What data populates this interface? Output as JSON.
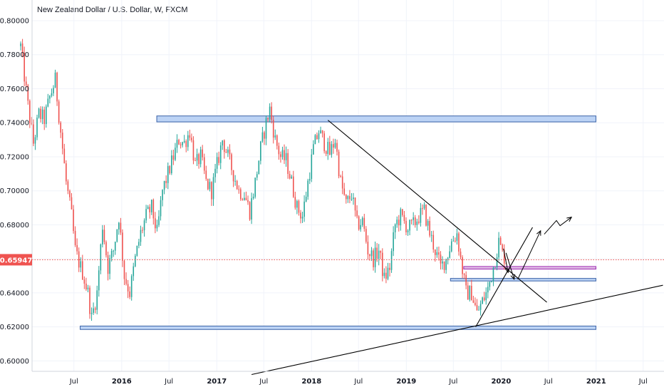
{
  "colors": {
    "up": "#26a69a",
    "down": "#ef5350",
    "grid": "#f0f3fa",
    "axis": "#d1d4dc",
    "zone_fill": "#bcd3f5",
    "zone_stroke": "#3a63a8",
    "purple": "#9c27b0",
    "price_line": "#ef5350",
    "drawing": "#000000"
  },
  "chart_data": {
    "type": "candlestick",
    "title": "New Zealand Dollar / U.S. Dollar, W, FXCM",
    "ylim": [
      0.595,
      0.808
    ],
    "y_ticks": [
      "0.80000",
      "0.78000",
      "0.76000",
      "0.74000",
      "0.72000",
      "0.70000",
      "0.68000",
      "0.66000",
      "0.64000",
      "0.62000",
      "0.60000"
    ],
    "x_ticks": [
      {
        "label": "Jul",
        "date": "2015-07-01",
        "bold": false
      },
      {
        "label": "2016",
        "date": "2016-01-01",
        "bold": true
      },
      {
        "label": "Jul",
        "date": "2016-07-01",
        "bold": false
      },
      {
        "label": "2017",
        "date": "2017-01-01",
        "bold": true
      },
      {
        "label": "Jul",
        "date": "2017-07-01",
        "bold": false
      },
      {
        "label": "2018",
        "date": "2018-01-01",
        "bold": true
      },
      {
        "label": "Jul",
        "date": "2018-07-01",
        "bold": false
      },
      {
        "label": "2019",
        "date": "2019-01-01",
        "bold": true
      },
      {
        "label": "Jul",
        "date": "2019-07-01",
        "bold": false
      },
      {
        "label": "2020",
        "date": "2020-01-01",
        "bold": true
      },
      {
        "label": "Jul",
        "date": "2020-07-01",
        "bold": false
      },
      {
        "label": "2021",
        "date": "2021-01-01",
        "bold": true
      },
      {
        "label": "Jul",
        "date": "2021-07-01",
        "bold": false
      }
    ],
    "x_range": [
      "2014-12-01",
      "2021-09-15"
    ],
    "current_price": {
      "value": 0.65947,
      "label": "0.65947"
    },
    "close_path": [
      [
        "2014-12-08",
        0.785
      ],
      [
        "2015-01-05",
        0.75
      ],
      [
        "2015-01-26",
        0.728
      ],
      [
        "2015-02-16",
        0.745
      ],
      [
        "2015-03-09",
        0.742
      ],
      [
        "2015-03-30",
        0.755
      ],
      [
        "2015-04-20",
        0.765
      ],
      [
        "2015-05-11",
        0.735
      ],
      [
        "2015-06-01",
        0.705
      ],
      [
        "2015-06-22",
        0.685
      ],
      [
        "2015-07-06",
        0.665
      ],
      [
        "2015-07-20",
        0.658
      ],
      [
        "2015-08-03",
        0.652
      ],
      [
        "2015-08-24",
        0.64
      ],
      [
        "2015-09-07",
        0.625
      ],
      [
        "2015-09-28",
        0.64
      ],
      [
        "2015-10-19",
        0.68
      ],
      [
        "2015-11-09",
        0.655
      ],
      [
        "2015-11-30",
        0.665
      ],
      [
        "2015-12-21",
        0.685
      ],
      [
        "2016-01-11",
        0.65
      ],
      [
        "2016-02-01",
        0.64
      ],
      [
        "2016-02-22",
        0.66
      ],
      [
        "2016-03-14",
        0.675
      ],
      [
        "2016-04-04",
        0.685
      ],
      [
        "2016-04-25",
        0.69
      ],
      [
        "2016-05-16",
        0.675
      ],
      [
        "2016-06-06",
        0.7
      ],
      [
        "2016-06-27",
        0.71
      ],
      [
        "2016-07-18",
        0.72
      ],
      [
        "2016-08-08",
        0.73
      ],
      [
        "2016-08-29",
        0.728
      ],
      [
        "2016-09-19",
        0.735
      ],
      [
        "2016-10-10",
        0.715
      ],
      [
        "2016-10-31",
        0.72
      ],
      [
        "2016-11-21",
        0.705
      ],
      [
        "2016-12-12",
        0.7
      ],
      [
        "2017-01-02",
        0.715
      ],
      [
        "2017-01-23",
        0.73
      ],
      [
        "2017-02-13",
        0.72
      ],
      [
        "2017-03-06",
        0.71
      ],
      [
        "2017-03-27",
        0.7
      ],
      [
        "2017-04-17",
        0.698
      ],
      [
        "2017-05-08",
        0.688
      ],
      [
        "2017-05-29",
        0.705
      ],
      [
        "2017-06-19",
        0.725
      ],
      [
        "2017-07-10",
        0.74
      ],
      [
        "2017-07-24",
        0.748
      ],
      [
        "2017-08-14",
        0.73
      ],
      [
        "2017-09-04",
        0.72
      ],
      [
        "2017-09-25",
        0.718
      ],
      [
        "2017-10-16",
        0.705
      ],
      [
        "2017-11-06",
        0.69
      ],
      [
        "2017-11-27",
        0.685
      ],
      [
        "2017-12-18",
        0.705
      ],
      [
        "2018-01-08",
        0.725
      ],
      [
        "2018-01-29",
        0.735
      ],
      [
        "2018-02-19",
        0.728
      ],
      [
        "2018-03-12",
        0.722
      ],
      [
        "2018-04-02",
        0.73
      ],
      [
        "2018-04-23",
        0.705
      ],
      [
        "2018-05-14",
        0.692
      ],
      [
        "2018-06-04",
        0.698
      ],
      [
        "2018-06-25",
        0.68
      ],
      [
        "2018-07-16",
        0.682
      ],
      [
        "2018-08-06",
        0.665
      ],
      [
        "2018-08-27",
        0.66
      ],
      [
        "2018-09-17",
        0.665
      ],
      [
        "2018-10-08",
        0.648
      ],
      [
        "2018-10-29",
        0.655
      ],
      [
        "2018-11-19",
        0.68
      ],
      [
        "2018-12-10",
        0.685
      ],
      [
        "2019-01-07",
        0.678
      ],
      [
        "2019-01-28",
        0.68
      ],
      [
        "2019-02-18",
        0.685
      ],
      [
        "2019-03-11",
        0.688
      ],
      [
        "2019-04-01",
        0.675
      ],
      [
        "2019-04-22",
        0.665
      ],
      [
        "2019-05-13",
        0.655
      ],
      [
        "2019-06-03",
        0.66
      ],
      [
        "2019-06-24",
        0.67
      ],
      [
        "2019-07-15",
        0.675
      ],
      [
        "2019-07-29",
        0.66
      ],
      [
        "2019-08-19",
        0.64
      ],
      [
        "2019-09-09",
        0.64
      ],
      [
        "2019-09-30",
        0.628
      ],
      [
        "2019-10-21",
        0.635
      ],
      [
        "2019-11-11",
        0.642
      ],
      [
        "2019-12-02",
        0.655
      ],
      [
        "2019-12-23",
        0.67
      ],
      [
        "2020-01-06",
        0.663
      ],
      [
        "2020-01-20",
        0.65947
      ]
    ],
    "zones": [
      {
        "from": "2016-05-15",
        "to": "2020-12-31",
        "low": 0.7405,
        "high": 0.744,
        "color": "blue"
      },
      {
        "from": "2015-07-25",
        "to": "2020-12-31",
        "low": 0.6185,
        "high": 0.6205,
        "color": "blue"
      },
      {
        "from": "2019-06-20",
        "to": "2020-12-31",
        "low": 0.647,
        "high": 0.6485,
        "color": "blue"
      },
      {
        "from": "2019-08-10",
        "to": "2020-12-31",
        "low": 0.654,
        "high": 0.6555,
        "color": "purple"
      }
    ],
    "trend_lines": [
      {
        "from": [
          "2018-03-05",
          0.7415
        ],
        "to": [
          "2020-06-25",
          0.6345
        ]
      },
      {
        "from": [
          "2017-05-15",
          0.592
        ],
        "to": [
          "2021-09-15",
          0.6445
        ]
      },
      {
        "from": [
          "2019-09-25",
          0.62
        ],
        "to": [
          "2020-05-01",
          0.6785
        ]
      }
    ],
    "arrows": [
      {
        "path": [
          [
            "2020-01-10",
            0.666
          ],
          [
            "2020-01-28",
            0.652
          ]
        ]
      },
      {
        "path": [
          [
            "2020-01-20",
            0.6635
          ],
          [
            "2020-02-20",
            0.648
          ]
        ]
      },
      {
        "path": [
          [
            "2020-03-05",
            0.648
          ],
          [
            "2020-06-01",
            0.6765
          ]
        ]
      },
      {
        "path": [
          [
            "2020-06-15",
            0.6745
          ],
          [
            "2020-08-01",
            0.6825
          ],
          [
            "2020-08-15",
            0.6795
          ],
          [
            "2020-09-28",
            0.6845
          ]
        ]
      }
    ]
  }
}
